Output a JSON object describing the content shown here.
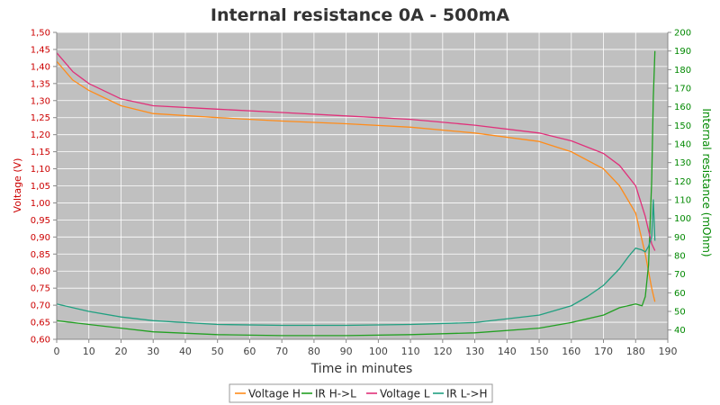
{
  "chart_data": {
    "type": "line",
    "title": "Internal resistance  0A - 500mA",
    "xlabel": "Time in minutes",
    "ylabel": "Voltage (V)",
    "y2label": "Internal resistance (mOhm)",
    "xlim": [
      0,
      190
    ],
    "ylim": [
      0.6,
      1.5
    ],
    "y2lim": [
      35,
      200
    ],
    "xticks": [
      "0",
      "10",
      "20",
      "30",
      "40",
      "50",
      "60",
      "70",
      "80",
      "90",
      "100",
      "110",
      "120",
      "130",
      "140",
      "150",
      "160",
      "170",
      "180",
      "190"
    ],
    "yticks": [
      "0,60",
      "0,65",
      "0,70",
      "0,75",
      "0,80",
      "0,85",
      "0,90",
      "0,95",
      "1,00",
      "1,05",
      "1,10",
      "1,15",
      "1,20",
      "1,25",
      "1,30",
      "1,35",
      "1,40",
      "1,45",
      "1,50"
    ],
    "y2ticks": [
      "40",
      "50",
      "60",
      "70",
      "80",
      "90",
      "100",
      "110",
      "120",
      "130",
      "140",
      "150",
      "160",
      "170",
      "180",
      "190",
      "200"
    ],
    "grid": true,
    "legend_position": "bottom",
    "colors": {
      "plot_bg": "#c0c0c0",
      "grid": "#ffffff",
      "voltage_h": "#ff8c1a",
      "ir_hl": "#22a022",
      "voltage_l": "#e0307a",
      "ir_lh": "#20a080",
      "left_axis": "#cc0000",
      "right_axis": "#008800"
    },
    "series": [
      {
        "name": "Voltage H",
        "axis": "left",
        "x": [
          0,
          5,
          10,
          20,
          30,
          50,
          70,
          90,
          110,
          130,
          150,
          160,
          170,
          175,
          180,
          183,
          185,
          186
        ],
        "y": [
          1.415,
          1.36,
          1.33,
          1.285,
          1.262,
          1.25,
          1.24,
          1.232,
          1.222,
          1.205,
          1.18,
          1.15,
          1.1,
          1.05,
          0.97,
          0.85,
          0.75,
          0.71
        ]
      },
      {
        "name": "IR H->L",
        "axis": "right",
        "x": [
          0,
          10,
          20,
          30,
          50,
          70,
          90,
          110,
          130,
          150,
          160,
          170,
          175,
          180,
          182,
          183,
          184,
          185,
          185.5,
          186
        ],
        "y": [
          45,
          43,
          41,
          39,
          37.5,
          37,
          37,
          37.5,
          38.5,
          41,
          44,
          48,
          52,
          54,
          53,
          58,
          75,
          120,
          165,
          190
        ]
      },
      {
        "name": "Voltage L",
        "axis": "left",
        "x": [
          0,
          5,
          10,
          20,
          30,
          50,
          70,
          90,
          110,
          130,
          150,
          160,
          170,
          175,
          180,
          183,
          185,
          186
        ],
        "y": [
          1.44,
          1.385,
          1.35,
          1.305,
          1.285,
          1.275,
          1.265,
          1.255,
          1.245,
          1.228,
          1.205,
          1.182,
          1.145,
          1.11,
          1.05,
          0.96,
          0.88,
          0.86
        ]
      },
      {
        "name": "IR L->H",
        "axis": "right",
        "x": [
          0,
          10,
          20,
          30,
          50,
          70,
          90,
          110,
          130,
          150,
          160,
          165,
          170,
          175,
          178,
          180,
          182,
          183,
          184,
          185,
          185.5,
          186
        ],
        "y": [
          54,
          50,
          47,
          45,
          43,
          42.5,
          42.5,
          43,
          44,
          48,
          53,
          58,
          64,
          73,
          80,
          84,
          83,
          82,
          85,
          90,
          110,
          88
        ]
      }
    ]
  }
}
